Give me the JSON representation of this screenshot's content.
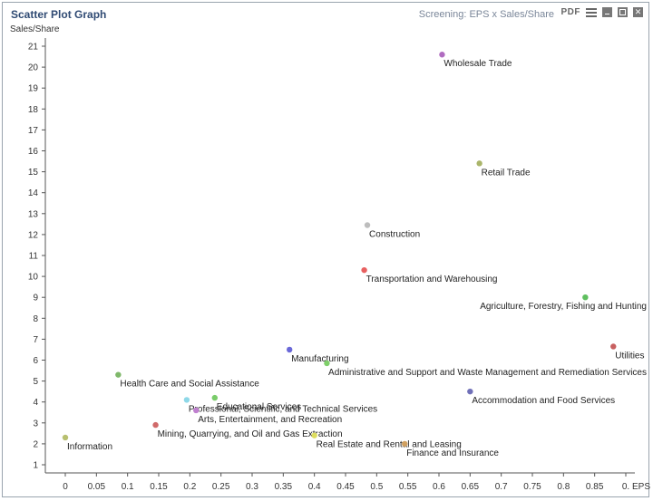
{
  "header": {
    "title": "Scatter Plot Graph",
    "subtitle": "Screening: EPS x Sales/Share",
    "pdf_label": "PDF"
  },
  "chart_data": {
    "type": "scatter",
    "title": "",
    "xlabel": "EPS",
    "ylabel": "Sales/Share",
    "xlim": [
      -0.04,
      0.92
    ],
    "ylim": [
      0.3,
      21.5
    ],
    "x_ticks": [
      "0",
      "0.05",
      "0.1",
      "0.15",
      "0.2",
      "0.25",
      "0.3",
      "0.35",
      "0.4",
      "0.45",
      "0.5",
      "0.55",
      "0.6",
      "0.65",
      "0.7",
      "0.75",
      "0.8",
      "0.85",
      "0."
    ],
    "y_ticks": [
      1,
      2,
      3,
      4,
      5,
      6,
      7,
      8,
      9,
      10,
      11,
      12,
      13,
      14,
      15,
      16,
      17,
      18,
      19,
      20,
      21
    ],
    "grid": false,
    "points": [
      {
        "label": "Wholesale Trade",
        "x": 0.605,
        "y": 20.6,
        "color": "#b06cc0"
      },
      {
        "label": "Retail Trade",
        "x": 0.665,
        "y": 15.4,
        "color": "#aab56a"
      },
      {
        "label": "Construction",
        "x": 0.485,
        "y": 12.45,
        "color": "#bdbdbd"
      },
      {
        "label": "Transportation and Warehousing",
        "x": 0.48,
        "y": 10.3,
        "color": "#e86060"
      },
      {
        "label": "Agriculture, Forestry, Fishing and Hunting",
        "x": 0.835,
        "y": 9.0,
        "color": "#5fbf5f"
      },
      {
        "label": "Utilities",
        "x": 0.88,
        "y": 6.65,
        "color": "#c86060"
      },
      {
        "label": "Manufacturing",
        "x": 0.36,
        "y": 6.5,
        "color": "#6a68d8"
      },
      {
        "label": "Administrative and Support and Waste Management and Remediation Services",
        "x": 0.42,
        "y": 5.85,
        "color": "#7fcf6a"
      },
      {
        "label": "Health Care and Social Assistance",
        "x": 0.085,
        "y": 5.3,
        "color": "#7fb86a"
      },
      {
        "label": "Accommodation and Food Services",
        "x": 0.65,
        "y": 4.5,
        "color": "#7070b8"
      },
      {
        "label": "Educational Services",
        "x": 0.24,
        "y": 4.2,
        "color": "#7acc6a"
      },
      {
        "label": "Professional, Scientific, and Technical Services",
        "x": 0.195,
        "y": 4.1,
        "color": "#8ed8e8"
      },
      {
        "label": "Arts, Entertainment, and Recreation",
        "x": 0.21,
        "y": 3.6,
        "color": "#c080d0"
      },
      {
        "label": "Mining, Quarrying, and Oil and Gas Extraction",
        "x": 0.145,
        "y": 2.9,
        "color": "#d06a6a"
      },
      {
        "label": "Real Estate and Rental and Leasing",
        "x": 0.4,
        "y": 2.4,
        "color": "#dddd60"
      },
      {
        "label": "Finance and Insurance",
        "x": 0.545,
        "y": 2.0,
        "color": "#d0a060"
      },
      {
        "label": "Information",
        "x": 0.0,
        "y": 2.3,
        "color": "#b8c070"
      }
    ]
  }
}
